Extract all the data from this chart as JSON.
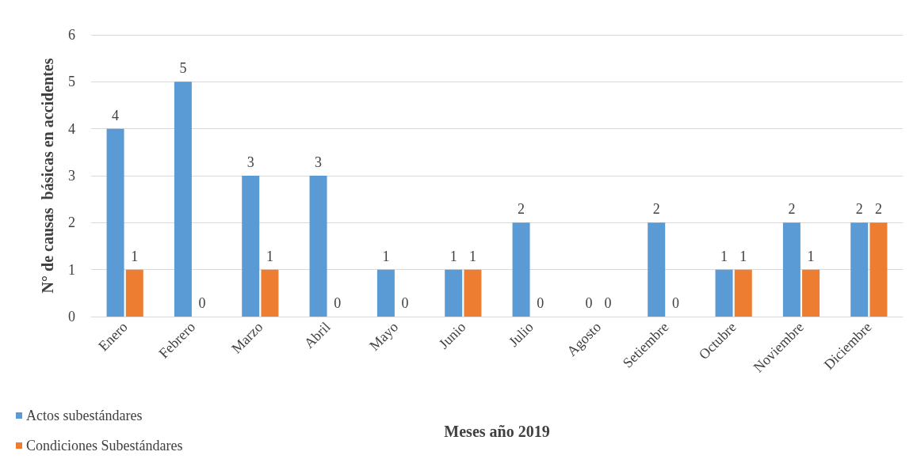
{
  "chart_data": {
    "type": "bar",
    "categories": [
      "Enero",
      "Febrero",
      "Marzo",
      "Abril",
      "Mayo",
      "Junio",
      "Julio",
      "Agosto",
      "Setiembre",
      "Octubre",
      "Noviembre",
      "Diciembre"
    ],
    "series": [
      {
        "name": "Actos subestándares",
        "color": "#5b9bd5",
        "values": [
          4,
          5,
          3,
          3,
          1,
          1,
          2,
          0,
          2,
          1,
          2,
          2
        ]
      },
      {
        "name": "Condiciones Subestándares",
        "color": "#ed7d31",
        "values": [
          1,
          0,
          1,
          0,
          0,
          1,
          0,
          0,
          0,
          1,
          1,
          2
        ]
      }
    ],
    "xlabel": "Meses año 2019",
    "ylabel": "N° de causas  básicas en accidentes",
    "ylim": [
      0,
      6
    ],
    "yticks": [
      0,
      1,
      2,
      3,
      4,
      5,
      6
    ],
    "grid": "y",
    "legend": "bottom left",
    "data_labels": true
  }
}
